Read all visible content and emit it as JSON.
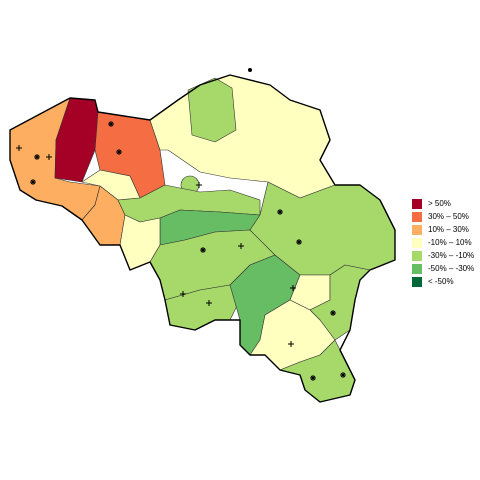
{
  "map": {
    "legend": [
      {
        "label": "> 50%",
        "color": "#a50026"
      },
      {
        "label": "30%  –  50%",
        "color": "#f46d43"
      },
      {
        "label": "10%  –  30%",
        "color": "#fdae61"
      },
      {
        "label": "-10%  –  10%",
        "color": "#ffffbf"
      },
      {
        "label": "-30%  – -10%",
        "color": "#a6d96a"
      },
      {
        "label": "-50%  – -30%",
        "color": "#66bd63"
      },
      {
        "label": "< -50%",
        "color": "#006837"
      }
    ]
  }
}
